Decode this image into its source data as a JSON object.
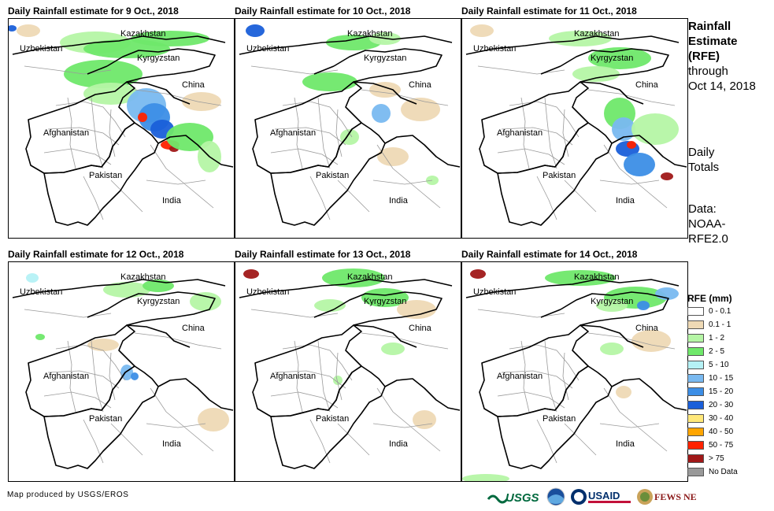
{
  "panels": [
    {
      "title": "Daily Rainfall estimate for 9 Oct., 2018"
    },
    {
      "title": "Daily Rainfall estimate for 10 Oct., 2018"
    },
    {
      "title": "Daily Rainfall estimate for 11 Oct., 2018"
    },
    {
      "title": "Daily Rainfall estimate for 12 Oct., 2018"
    },
    {
      "title": "Daily Rainfall estimate for 13 Oct., 2018"
    },
    {
      "title": "Daily Rainfall estimate for 14 Oct., 2018"
    }
  ],
  "labels": {
    "kazakhstan": "Kazakhstan",
    "uzbekistan": "Uzbekistan",
    "kyrgyzstan": "Kyrgyzstan",
    "china": "China",
    "afghanistan": "Afghanistan",
    "pakistan": "Pakistan",
    "india": "India"
  },
  "side": {
    "title_line1": "Rainfall",
    "title_line2": "Estimate",
    "title_line3": "(RFE)",
    "through": "through",
    "date": "Oct 14, 2018",
    "daily1": "Daily",
    "daily2": "Totals",
    "data1": "Data:",
    "data2": "NOAA-",
    "data3": "RFE2.0"
  },
  "legend": {
    "title": "RFE (mm)",
    "items": [
      {
        "label": "0 - 0.1",
        "color": "#ffffff"
      },
      {
        "label": "0.1 - 1",
        "color": "#eed9b5"
      },
      {
        "label": "1 - 2",
        "color": "#b5f5a5"
      },
      {
        "label": "2 - 5",
        "color": "#6fe86a"
      },
      {
        "label": "5 - 10",
        "color": "#b5f1f5"
      },
      {
        "label": "10 - 15",
        "color": "#79b9f0"
      },
      {
        "label": "15 - 20",
        "color": "#3c8ee6"
      },
      {
        "label": "20 - 30",
        "color": "#1a5fd9"
      },
      {
        "label": "30 - 40",
        "color": "#ffe87a"
      },
      {
        "label": "40 - 50",
        "color": "#ffa500"
      },
      {
        "label": "50 - 75",
        "color": "#ff2200"
      },
      {
        "label": "> 75",
        "color": "#a01818"
      },
      {
        "label": "No Data",
        "color": "#999999"
      }
    ]
  },
  "footer": {
    "credit": "Map produced by USGS/EROS",
    "logo_usgs": "USGS",
    "logo_usaid": "USAID",
    "logo_fews": "FEWS NET"
  }
}
